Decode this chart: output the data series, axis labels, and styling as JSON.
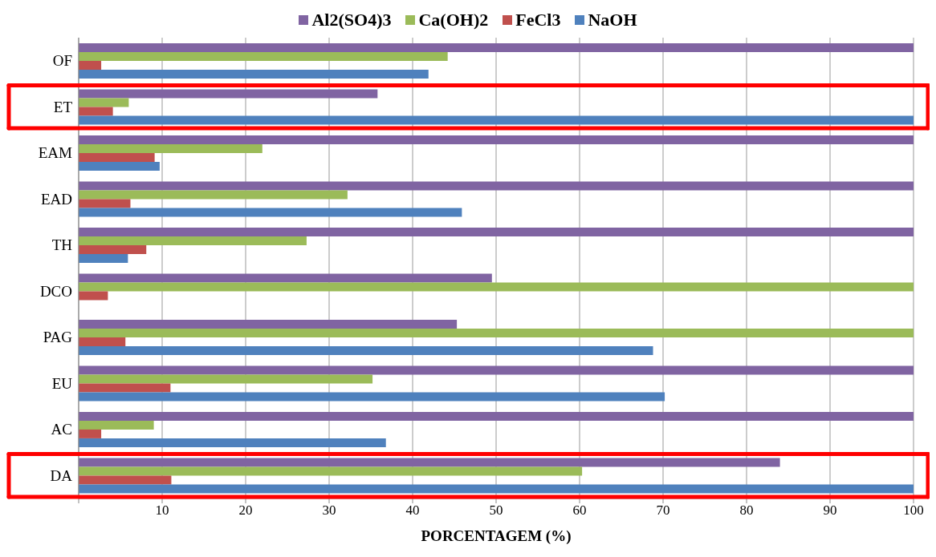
{
  "chart_data": {
    "type": "bar",
    "orientation": "horizontal",
    "xlabel": "PORCENTAGEM (%)",
    "categories": [
      "OF",
      "ET",
      "EAM",
      "EAD",
      "TH",
      "DCO",
      "PAG",
      "EU",
      "AC",
      "DA"
    ],
    "series": [
      {
        "name": "Al2(SO4)3",
        "color": "#8064a2",
        "values": [
          100,
          35.8,
          100,
          100,
          100,
          49.5,
          45.3,
          100,
          100,
          84
        ]
      },
      {
        "name": "Ca(OH)2",
        "color": "#9bbb59",
        "values": [
          44.2,
          6,
          22,
          32.2,
          27.3,
          100,
          100,
          35.2,
          9,
          60.3
        ]
      },
      {
        "name": "FeCl3",
        "color": "#c0504d",
        "values": [
          2.7,
          4.1,
          9.1,
          6.2,
          8.1,
          3.5,
          5.6,
          11,
          2.7,
          11.1
        ]
      },
      {
        "name": "NaOH",
        "color": "#4f81bd",
        "values": [
          41.9,
          100,
          9.7,
          45.9,
          5.9,
          null,
          68.8,
          70.2,
          36.8,
          100
        ]
      }
    ],
    "xlim": [
      0,
      100
    ],
    "xticks": [
      {
        "value": 0,
        "label": null
      },
      10,
      20,
      30,
      40,
      50,
      60,
      70,
      80,
      90,
      100
    ],
    "grid": "x",
    "legend": "top"
  }
}
